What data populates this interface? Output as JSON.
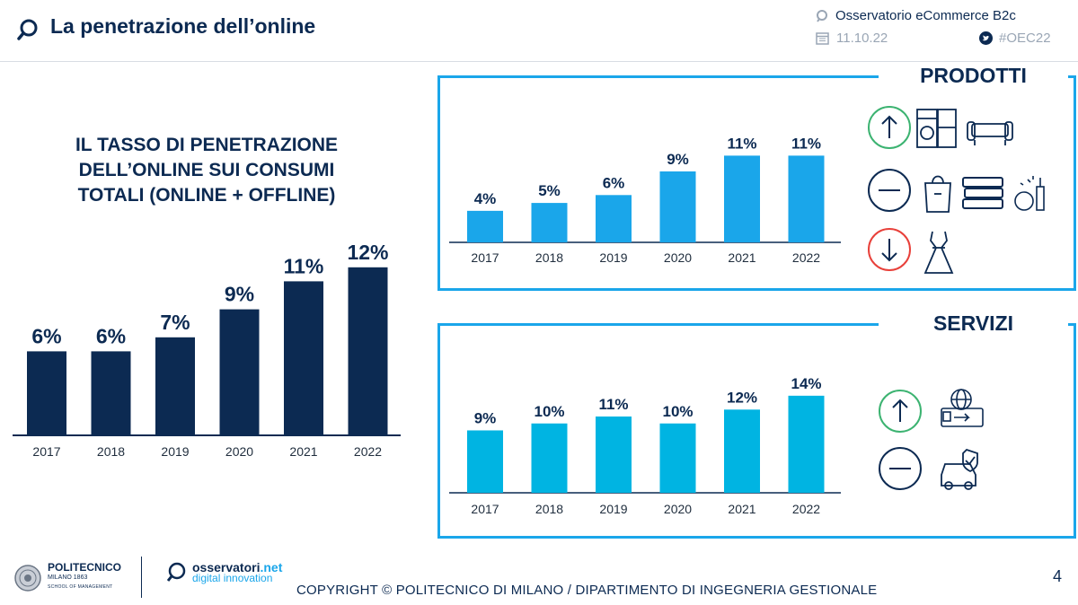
{
  "header": {
    "title": "La penetrazione dell’online",
    "observatory": "Osservatorio eCommerce B2c",
    "date": "11.10.22",
    "hashtag": "#OEC22"
  },
  "left_heading": [
    "IL TASSO DI PENETRAZIONE",
    "DELL’ONLINE SUI CONSUMI",
    "TOTALI (ONLINE + OFFLINE)"
  ],
  "panels": {
    "prodotti": {
      "title": "PRODOTTI",
      "icons_up": [
        "arrow-up-icon",
        "washing-machine-icon",
        "sofa-icon"
      ],
      "icons_flat": [
        "minus-icon",
        "grocery-bag-icon",
        "books-icon",
        "cosmetics-icon"
      ],
      "icons_down": [
        "arrow-down-icon",
        "dress-icon"
      ]
    },
    "servizi": {
      "title": "SERVIZI",
      "icons_up": [
        "arrow-up-icon",
        "travel-icon"
      ],
      "icons_flat": [
        "minus-icon",
        "car-insurance-icon"
      ]
    }
  },
  "footer": {
    "copyright": "COPYRIGHT © POLITECNICO DI MILANO / DIPARTIMENTO DI INGEGNERIA GESTIONALE",
    "page_number": "4",
    "poli_name": "POLITECNICO",
    "poli_sub": "MILANO 1863",
    "poli_school": "SCHOOL OF MANAGEMENT",
    "oss_name": "osservatori",
    "oss_net": ".net",
    "oss_sub": "digital innovation"
  },
  "colors": {
    "navy": "#0c2a52",
    "prodotti_bar": "#1aa6ea",
    "servizi_bar": "#00b4e2",
    "panel_border": "#1aa6ea",
    "up_green": "#3cb371",
    "down_red": "#e8403a"
  },
  "chart_data": [
    {
      "type": "bar",
      "title": "IL TASSO DI PENETRAZIONE DELL’ONLINE SUI CONSUMI TOTALI (ONLINE + OFFLINE)",
      "categories": [
        "2017",
        "2018",
        "2019",
        "2020",
        "2021",
        "2022"
      ],
      "values": [
        6,
        6,
        7,
        9,
        11,
        12
      ],
      "labels": [
        "6%",
        "6%",
        "7%",
        "9%",
        "11%",
        "12%"
      ],
      "ylim": [
        0,
        12.5
      ],
      "color": "#0c2a52"
    },
    {
      "type": "bar",
      "title": "PRODOTTI",
      "categories": [
        "2017",
        "2018",
        "2019",
        "2020",
        "2021",
        "2022"
      ],
      "values": [
        4,
        5,
        6,
        9,
        11,
        11
      ],
      "labels": [
        "4%",
        "5%",
        "6%",
        "9%",
        "11%",
        "11%"
      ],
      "ylim": [
        0,
        11.5
      ],
      "color": "#1aa6ea"
    },
    {
      "type": "bar",
      "title": "SERVIZI",
      "categories": [
        "2017",
        "2018",
        "2019",
        "2020",
        "2021",
        "2022"
      ],
      "values": [
        9,
        10,
        11,
        10,
        12,
        14
      ],
      "labels": [
        "9%",
        "10%",
        "11%",
        "10%",
        "12%",
        "14%"
      ],
      "ylim": [
        0,
        14.5
      ],
      "color": "#00b4e2"
    }
  ]
}
